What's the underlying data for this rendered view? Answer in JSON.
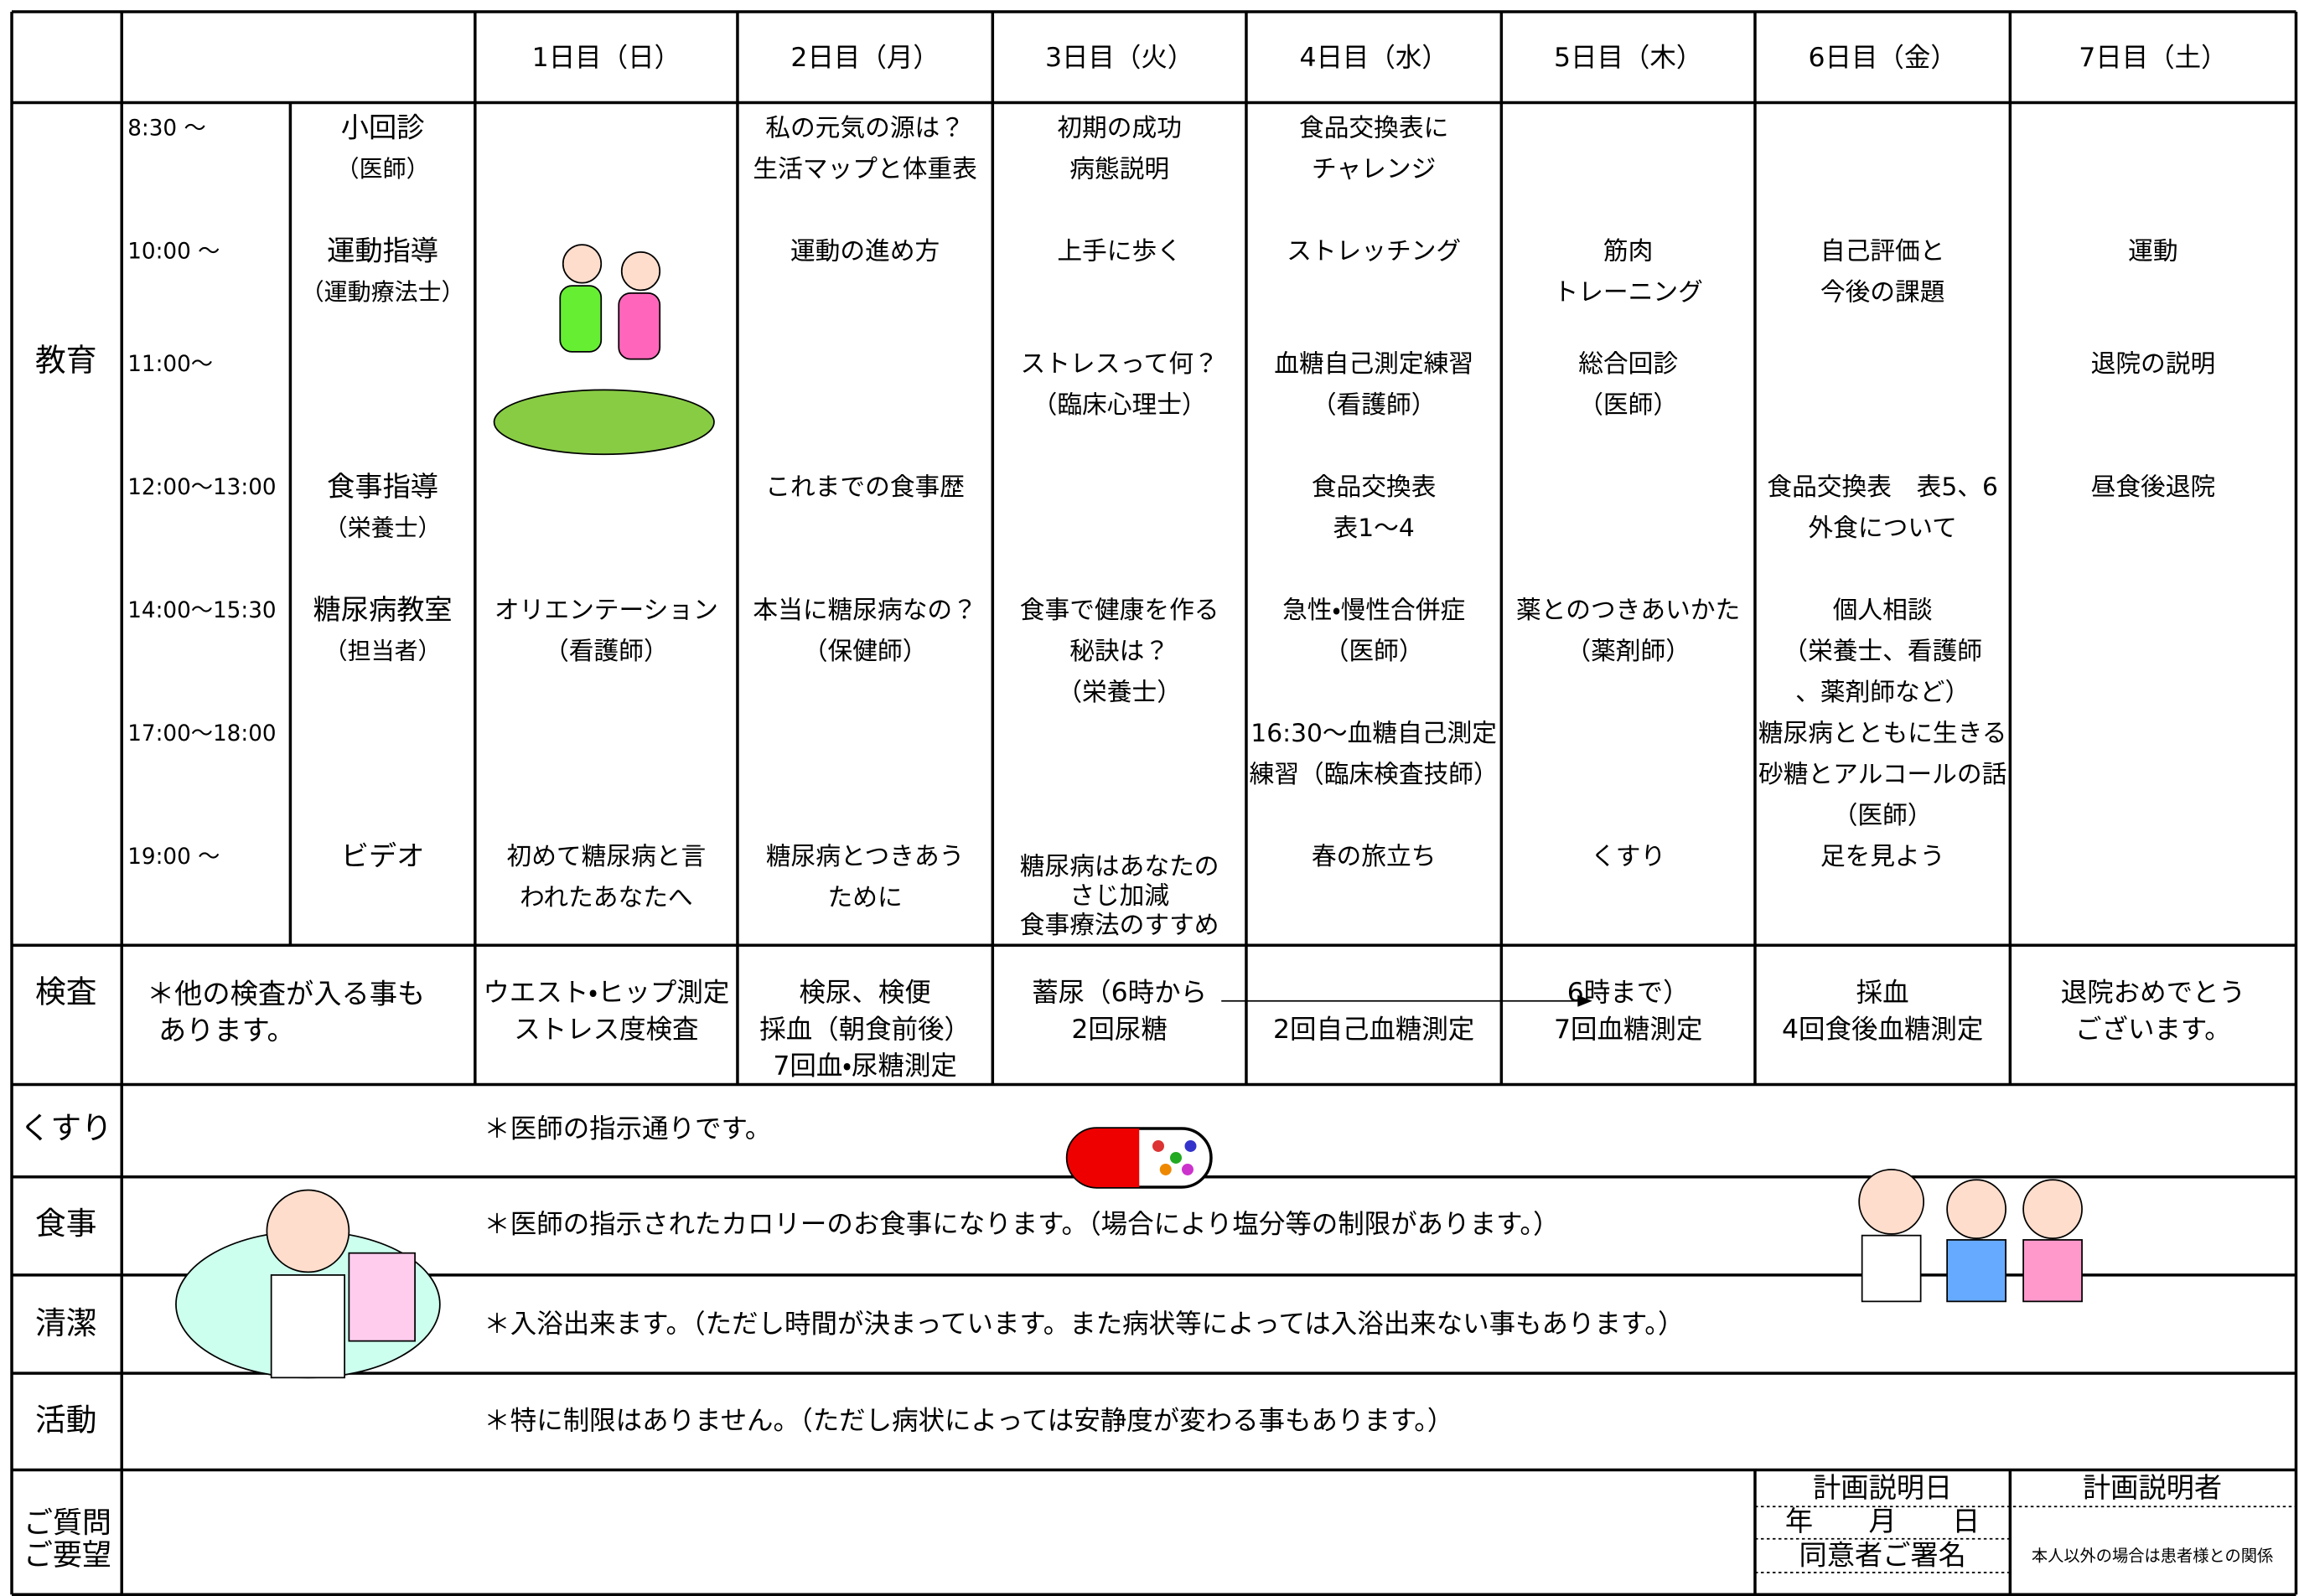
{
  "days": [
    "1日目（日）",
    "2日目（月）",
    "3日目（火）",
    "4日目（水）",
    "5日目（木）",
    "6日目（金）",
    "7日目（土）"
  ],
  "education": {
    "label": "教育",
    "slots": [
      {
        "time": "8:30 ～",
        "topic": [
          "小回診",
          "（医師）"
        ],
        "cells": [
          [],
          [
            "私の元気の源は？",
            "生活マップと体重表"
          ],
          [
            "初期の成功",
            "病態説明"
          ],
          [
            "食品交換表に",
            "チャレンジ"
          ],
          [],
          [],
          []
        ]
      },
      {
        "time": "10:00 ～",
        "topic": [
          "運動指導",
          "（運動療法士）"
        ],
        "cells": [
          [],
          [
            "運動の進め方"
          ],
          [
            "上手に歩く"
          ],
          [
            "ストレッチング"
          ],
          [
            "筋肉",
            "トレーニング"
          ],
          [
            "自己評価と",
            "今後の課題"
          ],
          [
            "運動"
          ]
        ]
      },
      {
        "time": "11:00～",
        "topic": [],
        "cells": [
          [],
          [],
          [
            "ストレスって何？",
            "（臨床心理士）"
          ],
          [
            "血糖自己測定練習",
            "（看護師）"
          ],
          [
            "総合回診",
            "（医師）"
          ],
          [],
          [
            "退院の説明"
          ]
        ]
      },
      {
        "time": "12:00～13:00",
        "topic": [
          "食事指導",
          "（栄養士）"
        ],
        "cells": [
          [],
          [
            "これまでの食事歴"
          ],
          [],
          [
            "食品交換表",
            "表1～4"
          ],
          [],
          [
            "食品交換表　表5、6",
            "外食について"
          ],
          [
            "昼食後退院"
          ]
        ]
      },
      {
        "time": "14:00～15:30",
        "topic": [
          "糖尿病教室",
          "（担当者）"
        ],
        "cells": [
          [
            "オリエンテーション",
            "（看護師）"
          ],
          [
            "本当に糖尿病なの？",
            "（保健師）"
          ],
          [
            "食事で健康を作る",
            "秘訣は？",
            "（栄養士）"
          ],
          [
            "急性・慢性合併症",
            "（医師）"
          ],
          [
            "薬とのつきあいかた",
            "（薬剤師）"
          ],
          [
            "個人相談",
            "（栄養士、看護師",
            "、薬剤師など）"
          ],
          []
        ]
      },
      {
        "time": "17:00～18:00",
        "topic": [],
        "cells": [
          [],
          [],
          [],
          [
            "16:30～血糖自己測定",
            "練習（臨床検査技師）"
          ],
          [],
          [
            "糖尿病とともに生きる",
            "砂糖とアルコールの話",
            "（医師）"
          ],
          []
        ]
      },
      {
        "time": "19:00 ～",
        "topic": [
          "ビデオ"
        ],
        "cells": [
          [
            "初めて糖尿病と言",
            "われたあなたへ"
          ],
          [
            "糖尿病とつきあう",
            "ために"
          ],
          [
            "糖尿病はあなたの",
            "さじ加減",
            "食事療法のすすめ"
          ],
          [
            "春の旅立ち"
          ],
          [
            "くすり"
          ],
          [
            "足を見よう"
          ],
          []
        ]
      }
    ]
  },
  "tests": {
    "label": "検査",
    "note": [
      "＊他の検査が入る事も",
      "あります。"
    ],
    "cells": [
      [
        "ウエスト・ヒップ測定",
        "ストレス度検査"
      ],
      [
        "検尿、検便",
        "採血（朝食前後）",
        "7回血・尿糖測定"
      ],
      [
        "蓄尿（6時から",
        "2回尿糖"
      ],
      [
        "2回自己血糖測定"
      ],
      [
        "6時まで）",
        "7回血糖測定"
      ],
      [
        "採血",
        "4回食後血糖測定"
      ],
      [
        "退院おめでとう",
        "ございます。"
      ]
    ]
  },
  "rows": [
    {
      "label": "くすり",
      "text": "＊医師の指示通りです。"
    },
    {
      "label": "食事",
      "text": "＊医師の指示されたカロリーのお食事になります。（場合により塩分等の制限があります。）"
    },
    {
      "label": "清潔",
      "text": "＊入浴出来ます。（ただし時間が決まっています。また病状等によっては入浴出来ない事もあります。）"
    },
    {
      "label": "活動",
      "text": "＊特に制限はありません。（ただし病状によっては安静度が変わる事もあります。）"
    }
  ],
  "footer": {
    "label": [
      "ご質問",
      "ご要望"
    ],
    "plan_date_label": "計画説明日",
    "plan_person_label": "計画説明者",
    "date_format": "年　　月　　日",
    "consent_label": "同意者ご署名",
    "relation_note": "本人以外の場合は患者様との関係"
  }
}
